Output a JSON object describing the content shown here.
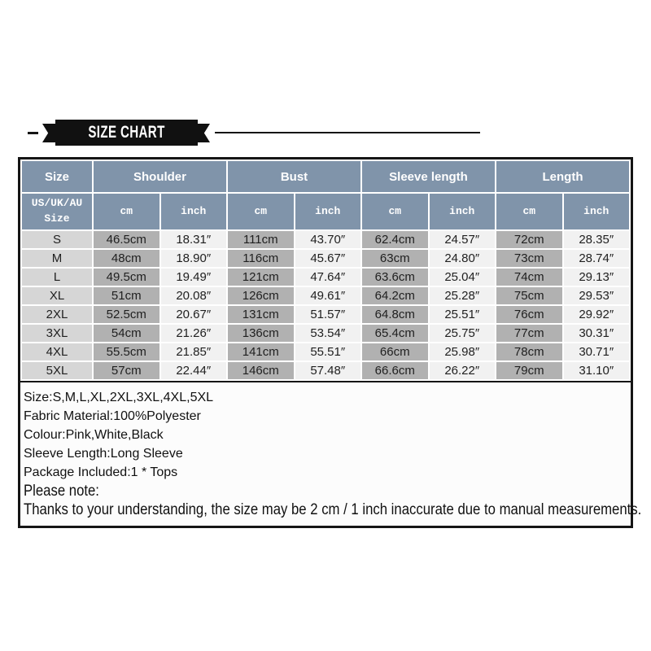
{
  "banner": {
    "title": "SIZE CHART"
  },
  "table": {
    "column_groups": [
      {
        "label": "Size"
      },
      {
        "label": "Shoulder"
      },
      {
        "label": "Bust"
      },
      {
        "label": "Sleeve length"
      },
      {
        "label": "Length"
      }
    ],
    "subheader": {
      "size_label": "US/UK/AU Size",
      "cm_label": "cm",
      "inch_label": "inch"
    },
    "rows": [
      {
        "size": "S",
        "values": [
          "46.5cm",
          "18.31″",
          "111cm",
          "43.70″",
          "62.4cm",
          "24.57″",
          "72cm",
          "28.35″"
        ]
      },
      {
        "size": "M",
        "values": [
          "48cm",
          "18.90″",
          "116cm",
          "45.67″",
          "63cm",
          "24.80″",
          "73cm",
          "28.74″"
        ]
      },
      {
        "size": "L",
        "values": [
          "49.5cm",
          "19.49″",
          "121cm",
          "47.64″",
          "63.6cm",
          "25.04″",
          "74cm",
          "29.13″"
        ]
      },
      {
        "size": "XL",
        "values": [
          "51cm",
          "20.08″",
          "126cm",
          "49.61″",
          "64.2cm",
          "25.28″",
          "75cm",
          "29.53″"
        ]
      },
      {
        "size": "2XL",
        "values": [
          "52.5cm",
          "20.67″",
          "131cm",
          "51.57″",
          "64.8cm",
          "25.51″",
          "76cm",
          "29.92″"
        ]
      },
      {
        "size": "3XL",
        "values": [
          "54cm",
          "21.26″",
          "136cm",
          "53.54″",
          "65.4cm",
          "25.75″",
          "77cm",
          "30.31″"
        ]
      },
      {
        "size": "4XL",
        "values": [
          "55.5cm",
          "21.85″",
          "141cm",
          "55.51″",
          "66cm",
          "25.98″",
          "78cm",
          "30.71″"
        ]
      },
      {
        "size": "5XL",
        "values": [
          "57cm",
          "22.44″",
          "146cm",
          "57.48″",
          "66.6cm",
          "26.22″",
          "79cm",
          "31.10″"
        ]
      }
    ]
  },
  "notes": {
    "lines": [
      "Size:S,M,L,XL,2XL,3XL,4XL,5XL",
      "Fabric Material:100%Polyester",
      "Colour:Pink,White,Black",
      "Sleeve Length:Long Sleeve",
      "Package Included:1 * Tops",
      "Please note:"
    ],
    "disclaimer": "Thanks to your understanding, the size may be 2 cm / 1 inch inaccurate due to manual measurements."
  },
  "colors": {
    "header_bg": "#8094aa",
    "size_cell_bg": "#d6d6d6",
    "cm_cell_bg": "#b1b1b1",
    "inch_cell_bg": "#f1f1f1",
    "border": "#151515"
  }
}
